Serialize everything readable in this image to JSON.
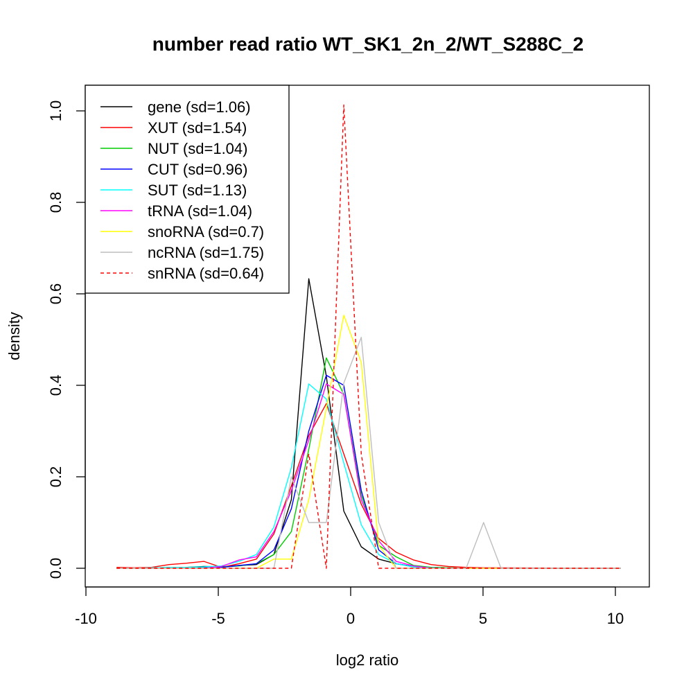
{
  "chart_data": {
    "type": "line",
    "title": "number read ratio WT_SK1_2n_2/WT_S288C_2",
    "xlabel": "log2 ratio",
    "ylabel": "density",
    "xlim": [
      -10,
      10
    ],
    "ylim": [
      0,
      1.0
    ],
    "x_ticks": [
      -10,
      -5,
      0,
      5,
      10
    ],
    "y_ticks": [
      0.0,
      0.2,
      0.4,
      0.6,
      0.8,
      1.0
    ],
    "x_tick_labels": [
      "-10",
      "-5",
      "0",
      "5",
      "10"
    ],
    "y_tick_labels": [
      "0.0",
      "0.2",
      "0.4",
      "0.6",
      "0.8",
      "1.0"
    ],
    "grid": false,
    "legend_position": "top-left",
    "series": [
      {
        "name": "gene (sd=1.06)",
        "color": "#000000",
        "dash": "solid",
        "x": [
          -8.84,
          -8.18,
          -7.52,
          -6.86,
          -6.2,
          -5.54,
          -4.88,
          -4.22,
          -3.56,
          -2.9,
          -2.24,
          -1.58,
          -0.92,
          -0.26,
          0.4,
          1.06,
          1.72,
          2.38,
          3.04,
          3.7,
          4.36,
          5.02,
          10.2
        ],
        "y": [
          0.0,
          0.0,
          0.0,
          0.002,
          0.002,
          0.004,
          0.003,
          0.006,
          0.008,
          0.03,
          0.15,
          0.633,
          0.42,
          0.125,
          0.047,
          0.02,
          0.01,
          0.004,
          0.002,
          0.001,
          0.0,
          0.0,
          0.0
        ]
      },
      {
        "name": "XUT (sd=1.54)",
        "color": "#ff0000",
        "dash": "solid",
        "x": [
          -8.84,
          -8.18,
          -7.52,
          -6.86,
          -6.2,
          -5.54,
          -4.88,
          -4.22,
          -3.56,
          -2.9,
          -2.24,
          -1.58,
          -0.92,
          -0.26,
          0.4,
          1.06,
          1.72,
          2.38,
          3.04,
          3.7,
          4.36,
          5.02,
          10.2
        ],
        "y": [
          0.002,
          0.001,
          0.002,
          0.008,
          0.011,
          0.015,
          0.002,
          0.01,
          0.02,
          0.075,
          0.18,
          0.29,
          0.36,
          0.25,
          0.14,
          0.065,
          0.035,
          0.018,
          0.008,
          0.004,
          0.002,
          0.001,
          0.0
        ]
      },
      {
        "name": "NUT (sd=1.04)",
        "color": "#00cc00",
        "dash": "solid",
        "x": [
          -8.84,
          -8.18,
          -7.52,
          -6.86,
          -6.2,
          -5.54,
          -4.88,
          -4.22,
          -3.56,
          -2.9,
          -2.24,
          -1.58,
          -0.92,
          -0.26,
          0.4,
          1.06,
          1.72,
          2.38,
          3.04,
          3.7,
          4.36,
          5.02,
          10.2
        ],
        "y": [
          0.0,
          0.0,
          0.0,
          0.002,
          0.001,
          0.002,
          0.003,
          0.005,
          0.01,
          0.03,
          0.08,
          0.26,
          0.46,
          0.38,
          0.16,
          0.05,
          0.025,
          0.006,
          0.002,
          0.001,
          0.0,
          0.0,
          0.0
        ]
      },
      {
        "name": "CUT (sd=0.96)",
        "color": "#0000ff",
        "dash": "solid",
        "x": [
          -8.84,
          -8.18,
          -7.52,
          -6.86,
          -6.2,
          -5.54,
          -4.88,
          -4.22,
          -3.56,
          -2.9,
          -2.24,
          -1.58,
          -0.92,
          -0.26,
          0.4,
          1.06,
          1.72,
          2.38,
          3.04,
          3.7,
          4.36,
          5.02,
          10.2
        ],
        "y": [
          0.0,
          0.0,
          0.0,
          0.001,
          0.001,
          0.002,
          0.002,
          0.006,
          0.01,
          0.04,
          0.13,
          0.3,
          0.422,
          0.4,
          0.17,
          0.04,
          0.01,
          0.003,
          0.001,
          0.0,
          0.0,
          0.0,
          0.0
        ]
      },
      {
        "name": "SUT (sd=1.13)",
        "color": "#00ffff",
        "dash": "solid",
        "x": [
          -8.84,
          -8.18,
          -7.52,
          -6.86,
          -6.2,
          -5.54,
          -4.88,
          -4.22,
          -3.56,
          -2.9,
          -2.24,
          -1.58,
          -0.92,
          -0.26,
          0.4,
          1.06,
          1.72,
          2.38,
          3.04,
          3.7,
          4.36,
          5.02,
          10.2
        ],
        "y": [
          0.0,
          0.0,
          0.001,
          0.002,
          0.002,
          0.003,
          0.005,
          0.015,
          0.03,
          0.09,
          0.22,
          0.403,
          0.37,
          0.23,
          0.095,
          0.03,
          0.01,
          0.003,
          0.001,
          0.0,
          0.0,
          0.0,
          0.0
        ]
      },
      {
        "name": "tRNA (sd=1.04)",
        "color": "#ff00ff",
        "dash": "solid",
        "x": [
          -8.84,
          -8.18,
          -7.52,
          -6.86,
          -6.2,
          -5.54,
          -4.88,
          -4.22,
          -3.56,
          -2.9,
          -2.24,
          -1.58,
          -0.92,
          -0.26,
          0.4,
          1.06,
          1.72,
          2.38,
          3.04,
          3.7,
          4.36,
          5.02,
          10.2
        ],
        "y": [
          0.0,
          0.0,
          0.0,
          0.0,
          0.0,
          0.0,
          0.004,
          0.018,
          0.025,
          0.08,
          0.17,
          0.28,
          0.403,
          0.38,
          0.15,
          0.06,
          0.015,
          0.005,
          0.0,
          0.0,
          0.0,
          0.0,
          0.0
        ]
      },
      {
        "name": "snoRNA (sd=0.7)",
        "color": "#ffff00",
        "dash": "solid",
        "x": [
          -8.84,
          -8.18,
          -7.52,
          -6.86,
          -6.2,
          -5.54,
          -4.88,
          -4.22,
          -3.56,
          -2.9,
          -2.24,
          -1.58,
          -0.92,
          -0.26,
          0.4,
          1.06,
          1.72,
          2.38,
          3.04,
          3.7,
          4.36,
          5.02,
          10.2
        ],
        "y": [
          0.0,
          0.0,
          0.0,
          0.0,
          0.0,
          0.0,
          0.0,
          0.0,
          0.0,
          0.02,
          0.02,
          0.15,
          0.35,
          0.553,
          0.45,
          0.05,
          0.0,
          0.0,
          0.0,
          0.0,
          0.0,
          0.0,
          0.0
        ]
      },
      {
        "name": "ncRNA (sd=1.75)",
        "color": "#bebebe",
        "dash": "solid",
        "x": [
          -8.84,
          -8.18,
          -7.52,
          -6.86,
          -6.2,
          -5.54,
          -4.88,
          -4.22,
          -3.56,
          -2.9,
          -2.24,
          -1.58,
          -0.92,
          -0.26,
          0.4,
          1.06,
          1.72,
          2.38,
          3.04,
          3.7,
          4.36,
          5.02,
          5.68,
          10.2
        ],
        "y": [
          0.0,
          0.0,
          0.0,
          0.0,
          0.0,
          0.0,
          0.0,
          0.0,
          0.0,
          0.0,
          0.2,
          0.1,
          0.1,
          0.405,
          0.505,
          0.1,
          0.0,
          0.0,
          0.0,
          0.0,
          0.0,
          0.1,
          0.0,
          0.0
        ]
      },
      {
        "name": "snRNA (sd=0.64)",
        "color": "#ff0000",
        "dash": "dashed",
        "x": [
          -8.84,
          -8.18,
          -7.52,
          -6.86,
          -6.2,
          -5.54,
          -4.88,
          -4.22,
          -3.56,
          -2.9,
          -2.24,
          -1.58,
          -0.92,
          -0.26,
          0.4,
          1.06,
          1.72,
          2.38,
          3.04,
          3.7,
          4.36,
          5.02,
          10.2
        ],
        "y": [
          0.0,
          0.0,
          0.0,
          0.0,
          0.0,
          0.0,
          0.0,
          0.0,
          0.0,
          0.0,
          0.0,
          0.25,
          0.0,
          1.013,
          0.25,
          0.0,
          0.0,
          0.0,
          0.0,
          0.0,
          0.0,
          0.0,
          0.0
        ]
      }
    ]
  }
}
